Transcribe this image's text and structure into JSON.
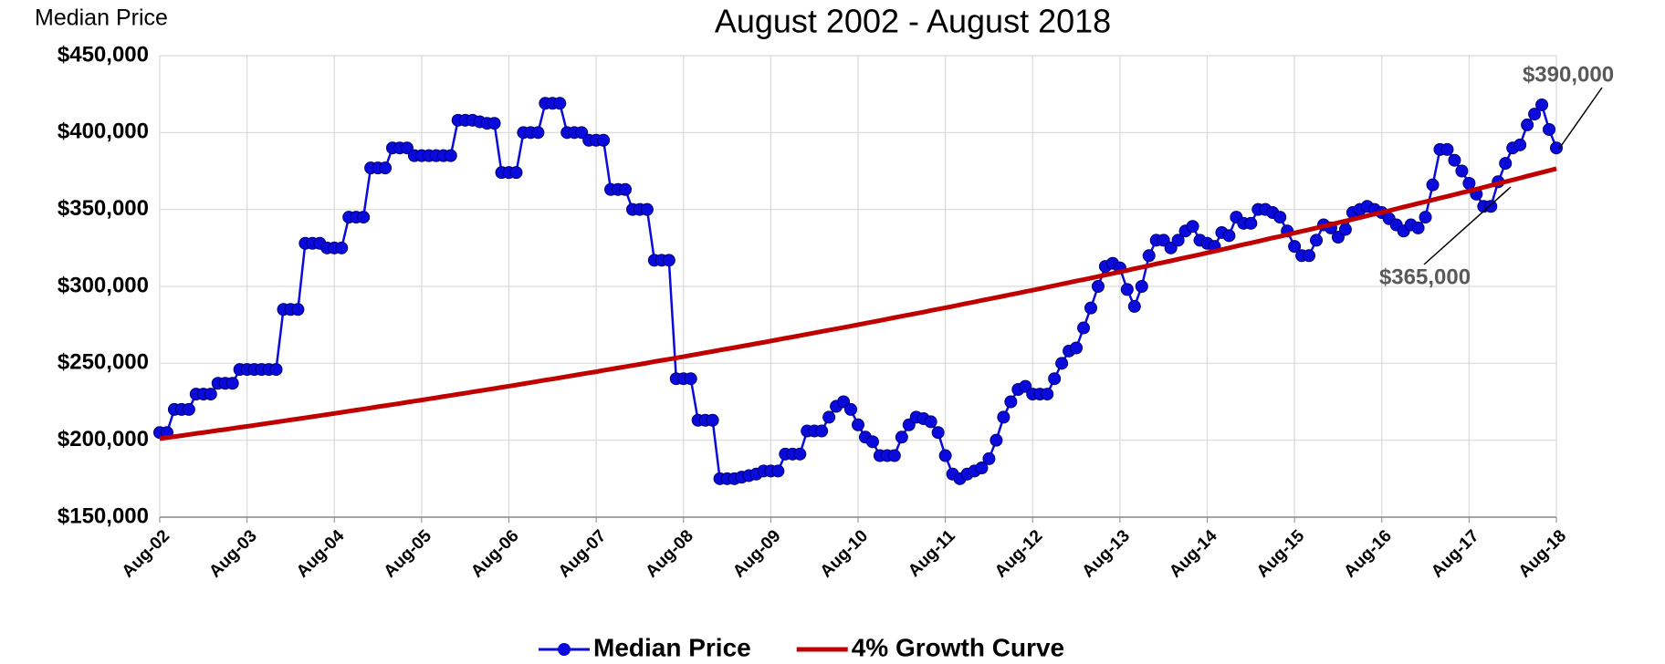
{
  "chart_data": {
    "type": "line",
    "title": "August 2002 - August 2018",
    "y_label": "Median Price",
    "categories": [
      "Aug-02",
      null,
      null,
      null,
      null,
      null,
      null,
      null,
      null,
      null,
      null,
      null,
      "Aug-03",
      null,
      null,
      null,
      null,
      null,
      null,
      null,
      null,
      null,
      null,
      null,
      "Aug-04",
      null,
      null,
      null,
      null,
      null,
      null,
      null,
      null,
      null,
      null,
      null,
      "Aug-05",
      null,
      null,
      null,
      null,
      null,
      null,
      null,
      null,
      null,
      null,
      null,
      "Aug-06",
      null,
      null,
      null,
      null,
      null,
      null,
      null,
      null,
      null,
      null,
      null,
      "Aug-07",
      null,
      null,
      null,
      null,
      null,
      null,
      null,
      null,
      null,
      null,
      null,
      "Aug-08",
      null,
      null,
      null,
      null,
      null,
      null,
      null,
      null,
      null,
      null,
      null,
      "Aug-09",
      null,
      null,
      null,
      null,
      null,
      null,
      null,
      null,
      null,
      null,
      null,
      "Aug-10",
      null,
      null,
      null,
      null,
      null,
      null,
      null,
      null,
      null,
      null,
      null,
      "Aug-11",
      null,
      null,
      null,
      null,
      null,
      null,
      null,
      null,
      null,
      null,
      null,
      "Aug-12",
      null,
      null,
      null,
      null,
      null,
      null,
      null,
      null,
      null,
      null,
      null,
      "Aug-13",
      null,
      null,
      null,
      null,
      null,
      null,
      null,
      null,
      null,
      null,
      null,
      "Aug-14",
      null,
      null,
      null,
      null,
      null,
      null,
      null,
      null,
      null,
      null,
      null,
      "Aug-15",
      null,
      null,
      null,
      null,
      null,
      null,
      null,
      null,
      null,
      null,
      null,
      "Aug-16",
      null,
      null,
      null,
      null,
      null,
      null,
      null,
      null,
      null,
      null,
      null,
      "Aug-17",
      null,
      null,
      null,
      null,
      null,
      null,
      null,
      null,
      null,
      null,
      null,
      "Aug-18"
    ],
    "series": [
      {
        "name": "Median Price",
        "color": "#0a0adc",
        "marker": true,
        "values": [
          205000,
          205000,
          220000,
          220000,
          220000,
          230000,
          230000,
          230000,
          237000,
          237000,
          237000,
          246000,
          246000,
          246000,
          246000,
          246000,
          246000,
          285000,
          285000,
          285000,
          328000,
          328000,
          328000,
          325000,
          325000,
          325000,
          345000,
          345000,
          345000,
          377000,
          377000,
          377000,
          390000,
          390000,
          390000,
          385000,
          385000,
          385000,
          385000,
          385000,
          385000,
          408000,
          408000,
          408000,
          407000,
          406000,
          406000,
          374000,
          374000,
          374000,
          400000,
          400000,
          400000,
          419000,
          419000,
          419000,
          400000,
          400000,
          400000,
          395000,
          395000,
          395000,
          363000,
          363000,
          363000,
          350000,
          350000,
          350000,
          317000,
          317000,
          317000,
          240000,
          240000,
          240000,
          213000,
          213000,
          213000,
          175000,
          175000,
          175000,
          176000,
          177000,
          178000,
          180000,
          180000,
          180000,
          191000,
          191000,
          191000,
          206000,
          206000,
          206000,
          215000,
          222000,
          225000,
          220000,
          210000,
          202000,
          199000,
          190000,
          190000,
          190000,
          202000,
          210000,
          215000,
          214000,
          212000,
          205000,
          190000,
          178000,
          175000,
          178000,
          180000,
          182000,
          188000,
          200000,
          215000,
          225000,
          233000,
          235000,
          230000,
          230000,
          230000,
          240000,
          250000,
          258000,
          260000,
          273000,
          286000,
          300000,
          313000,
          315000,
          312000,
          298000,
          287000,
          300000,
          320000,
          330000,
          330000,
          325000,
          330000,
          336000,
          339000,
          330000,
          328000,
          326000,
          335000,
          333000,
          345000,
          341000,
          341000,
          350000,
          350000,
          348000,
          345000,
          336000,
          326000,
          320000,
          320000,
          330000,
          340000,
          338000,
          332000,
          337000,
          348000,
          350000,
          352000,
          350000,
          348000,
          344000,
          340000,
          336000,
          340000,
          338000,
          345000,
          366000,
          389000,
          389000,
          382000,
          375000,
          367000,
          360000,
          352000,
          352000,
          368000,
          380000,
          390000,
          392000,
          405000,
          412000,
          418000,
          402000,
          390000
        ]
      },
      {
        "name": "4% Growth Curve",
        "color": "#c00000",
        "marker": false,
        "values": [
          201000,
          201700,
          202300,
          203000,
          203700,
          204400,
          205000,
          205700,
          206400,
          207000,
          207700,
          208400,
          209000,
          209700,
          210400,
          211100,
          211800,
          212500,
          213200,
          213900,
          214600,
          215300,
          216000,
          216700,
          217400,
          218100,
          218900,
          219600,
          220300,
          221000,
          221800,
          222500,
          223200,
          223900,
          224700,
          225400,
          226100,
          226900,
          227600,
          228400,
          229100,
          229900,
          230600,
          231400,
          232100,
          232900,
          233600,
          234400,
          235100,
          235900,
          236700,
          237500,
          238300,
          239100,
          239800,
          240600,
          241400,
          242200,
          243000,
          243800,
          244500,
          245400,
          246200,
          247000,
          247800,
          248600,
          249400,
          250200,
          251100,
          251900,
          252700,
          253500,
          254300,
          255200,
          256000,
          256900,
          257700,
          258600,
          259400,
          260200,
          261100,
          261900,
          262800,
          263600,
          264500,
          265400,
          266300,
          267100,
          268000,
          268900,
          269800,
          270700,
          271600,
          272400,
          273300,
          274200,
          275100,
          276000,
          276900,
          277800,
          278800,
          279700,
          280600,
          281500,
          282400,
          283300,
          284300,
          285200,
          286100,
          287000,
          288000,
          289000,
          289900,
          290900,
          291800,
          292800,
          293700,
          294700,
          295600,
          296600,
          297500,
          298500,
          299500,
          300500,
          301500,
          302500,
          303500,
          304400,
          305400,
          306400,
          307400,
          308400,
          309400,
          310400,
          311500,
          312500,
          313500,
          314600,
          315600,
          316600,
          317700,
          318700,
          319700,
          320700,
          321800,
          322900,
          323900,
          325000,
          326100,
          327200,
          328200,
          329300,
          330400,
          331500,
          332500,
          333600,
          334700,
          335800,
          336900,
          338000,
          339200,
          340300,
          341400,
          342500,
          343600,
          344700,
          345900,
          347000,
          348100,
          349200,
          350400,
          351600,
          352700,
          353900,
          355000,
          356200,
          357400,
          358500,
          359700,
          360900,
          362000,
          363200,
          364400,
          365600,
          366800,
          368000,
          369200,
          370400,
          371700,
          372900,
          374100,
          375300,
          376500
        ]
      }
    ],
    "ylim": [
      150000,
      450000
    ],
    "yticks": [
      {
        "value": 150000,
        "label": "$150,000"
      },
      {
        "value": 200000,
        "label": "$200,000"
      },
      {
        "value": 250000,
        "label": "$250,000"
      },
      {
        "value": 300000,
        "label": "$300,000"
      },
      {
        "value": 350000,
        "label": "$350,000"
      },
      {
        "value": 400000,
        "label": "$400,000"
      },
      {
        "value": 450000,
        "label": "$450,000"
      }
    ],
    "grid": true,
    "legend": "bottom",
    "annotations": [
      {
        "text": "$390,000"
      },
      {
        "text": "$365,000"
      }
    ]
  }
}
